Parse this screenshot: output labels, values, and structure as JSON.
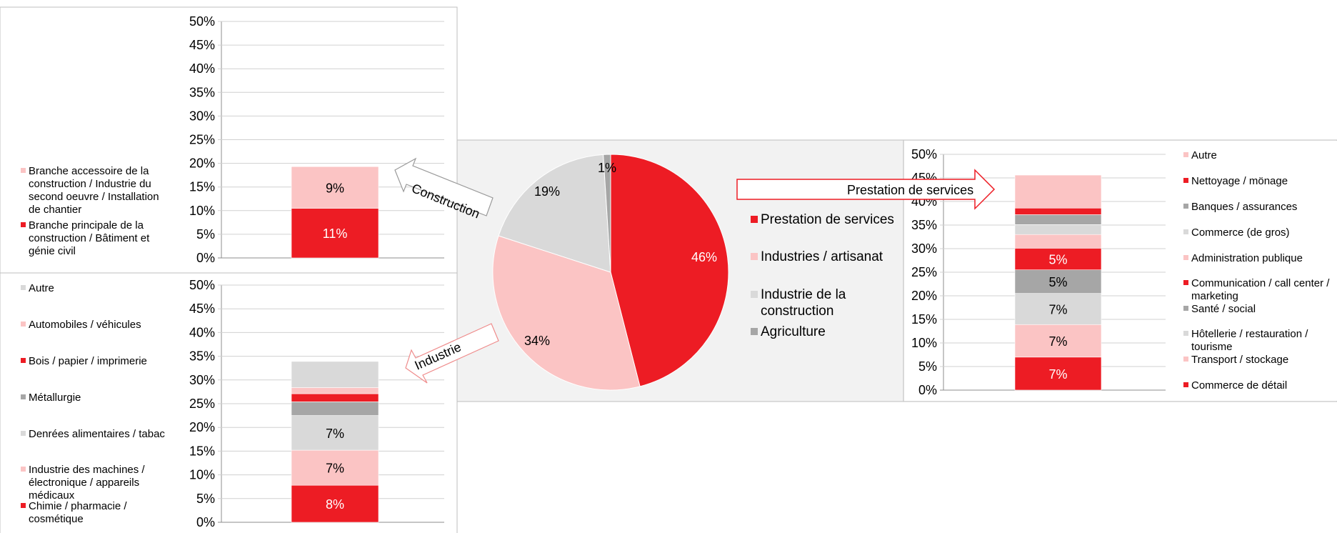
{
  "colors": {
    "red": "#ed1c24",
    "pink": "#fbc4c4",
    "gray": "#a6a6a6",
    "lightgray": "#d9d9d9",
    "panel": "#f2f2f2",
    "border": "#bfbfbf"
  },
  "ticks": [
    "0%",
    "5%",
    "10%",
    "15%",
    "20%",
    "25%",
    "30%",
    "35%",
    "40%",
    "45%",
    "50%"
  ],
  "arrows": {
    "construction": "Construction",
    "industrie": "Industrie",
    "services": "Prestation de services"
  },
  "chart_data": [
    {
      "type": "pie",
      "slices": [
        {
          "name": "Prestation de services",
          "value": 46,
          "label": "46%",
          "color": "#ed1c24"
        },
        {
          "name": "Industries / artisanat",
          "value": 34,
          "label": "34%",
          "color": "#fbc4c4"
        },
        {
          "name": "Industrie de la construction",
          "value": 19,
          "label": "19%",
          "color": "#d9d9d9"
        },
        {
          "name": "Agriculture",
          "value": 1,
          "label": "1%",
          "color": "#a6a6a6"
        }
      ]
    },
    {
      "type": "bar",
      "stacked": true,
      "ylim": [
        0,
        50
      ],
      "series": [
        {
          "name": "Branche principale de la construction / Bâtiment et génie civil",
          "value": 10.5,
          "label": "11%",
          "color": "#ed1c24"
        },
        {
          "name": "Branche accessoire de la construction / Industrie du second oeuvre / Installation de chantier",
          "value": 8.8,
          "label": "9%",
          "color": "#fbc4c4"
        }
      ]
    },
    {
      "type": "bar",
      "stacked": true,
      "ylim": [
        0,
        50
      ],
      "series": [
        {
          "name": "Chimie / pharmacie / cosmétique",
          "value": 7.8,
          "label": "8%",
          "color": "#ed1c24"
        },
        {
          "name": "Industrie des machines / électronique / appareils médicaux",
          "value": 7.4,
          "label": "7%",
          "color": "#fbc4c4"
        },
        {
          "name": "Denrées alimentaires / tabac",
          "value": 7.3,
          "label": "7%",
          "color": "#d9d9d9"
        },
        {
          "name": "Métallurgie",
          "value": 2.9,
          "label": "",
          "color": "#a6a6a6"
        },
        {
          "name": "Bois / papier / imprimerie",
          "value": 1.7,
          "label": "",
          "color": "#ed1c24"
        },
        {
          "name": "Automobiles / véhicules",
          "value": 1.3,
          "label": "",
          "color": "#fbc4c4"
        },
        {
          "name": "Autre",
          "value": 5.5,
          "label": "",
          "color": "#d9d9d9"
        }
      ]
    },
    {
      "type": "bar",
      "stacked": true,
      "ylim": [
        0,
        50
      ],
      "series": [
        {
          "name": "Commerce de détail",
          "value": 7.0,
          "label": "7%",
          "color": "#ed1c24"
        },
        {
          "name": "Transport / stockage",
          "value": 6.9,
          "label": "7%",
          "color": "#fbc4c4"
        },
        {
          "name": "Hôtellerie / restauration / tourisme",
          "value": 6.6,
          "label": "7%",
          "color": "#d9d9d9"
        },
        {
          "name": "Santé / social",
          "value": 5.0,
          "label": "5%",
          "color": "#a6a6a6"
        },
        {
          "name": "Communication / call center / marketing",
          "value": 4.6,
          "label": "5%",
          "color": "#ed1c24"
        },
        {
          "name": "Administration publique",
          "value": 2.9,
          "label": "",
          "color": "#fbc4c4"
        },
        {
          "name": "Commerce (de gros)",
          "value": 2.1,
          "label": "",
          "color": "#d9d9d9"
        },
        {
          "name": "Banques / assurances",
          "value": 2.1,
          "label": "",
          "color": "#a6a6a6"
        },
        {
          "name": "Nettoyage / mönage",
          "value": 1.4,
          "label": "",
          "color": "#ed1c24"
        },
        {
          "name": "Autre",
          "value": 7.0,
          "label": "",
          "color": "#fbc4c4"
        }
      ]
    }
  ]
}
